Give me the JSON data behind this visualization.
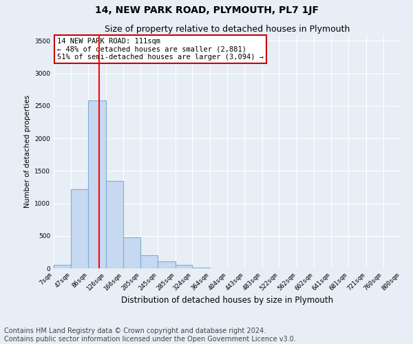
{
  "title": "14, NEW PARK ROAD, PLYMOUTH, PL7 1JF",
  "subtitle": "Size of property relative to detached houses in Plymouth",
  "xlabel": "Distribution of detached houses by size in Plymouth",
  "ylabel": "Number of detached properties",
  "bins": [
    7,
    47,
    86,
    126,
    166,
    205,
    245,
    285,
    324,
    364,
    404,
    443,
    483,
    522,
    562,
    602,
    641,
    681,
    721,
    760,
    800
  ],
  "counts": [
    50,
    1220,
    2580,
    1340,
    480,
    200,
    110,
    50,
    10,
    0,
    0,
    0,
    0,
    0,
    0,
    0,
    0,
    0,
    0,
    0
  ],
  "bar_color": "#c6d9f0",
  "bar_edge_color": "#7bafd4",
  "red_line_x": 111,
  "ylim": [
    0,
    3600
  ],
  "yticks": [
    0,
    500,
    1000,
    1500,
    2000,
    2500,
    3000,
    3500
  ],
  "annotation_text": "14 NEW PARK ROAD: 111sqm\n← 48% of detached houses are smaller (2,881)\n51% of semi-detached houses are larger (3,094) →",
  "annotation_box_color": "#ffffff",
  "annotation_box_edge_color": "#cc0000",
  "footer_line1": "Contains HM Land Registry data © Crown copyright and database right 2024.",
  "footer_line2": "Contains public sector information licensed under the Open Government Licence v3.0.",
  "background_color": "#e8eef5",
  "plot_background_color": "#e8eef5",
  "grid_color": "#ffffff",
  "title_fontsize": 10,
  "subtitle_fontsize": 9,
  "footer_fontsize": 7,
  "annot_fontsize": 7.5,
  "xlabel_fontsize": 8.5,
  "ylabel_fontsize": 7.5,
  "tick_fontsize": 6.5
}
